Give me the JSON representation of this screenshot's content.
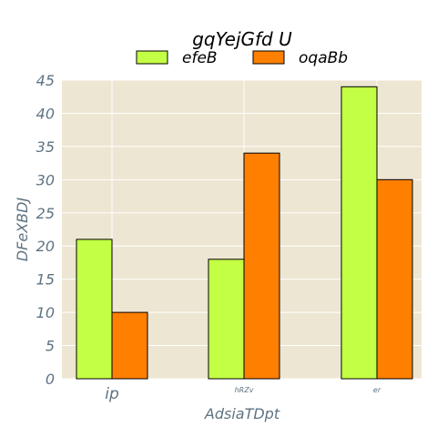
{
  "chart_data": {
    "type": "bar",
    "title": "gqYejGfd U",
    "xlabel": "AdsiaTDpt",
    "ylabel": "DFeXBDJ",
    "categories": [
      "ip",
      "hRZv",
      "er"
    ],
    "category_label_sizes": [
      17,
      8,
      8
    ],
    "ylim": [
      0,
      45
    ],
    "yticks": [
      0,
      5,
      10,
      15,
      20,
      25,
      30,
      35,
      40,
      45
    ],
    "grid": true,
    "legend_position": "top-center",
    "background": "#ede6d2",
    "series": [
      {
        "name": "efeB",
        "color": "#c3ff45",
        "values": [
          21,
          18,
          44
        ]
      },
      {
        "name": "oqaBb",
        "color": "#ff7f00",
        "values": [
          10,
          34,
          30
        ]
      }
    ]
  }
}
